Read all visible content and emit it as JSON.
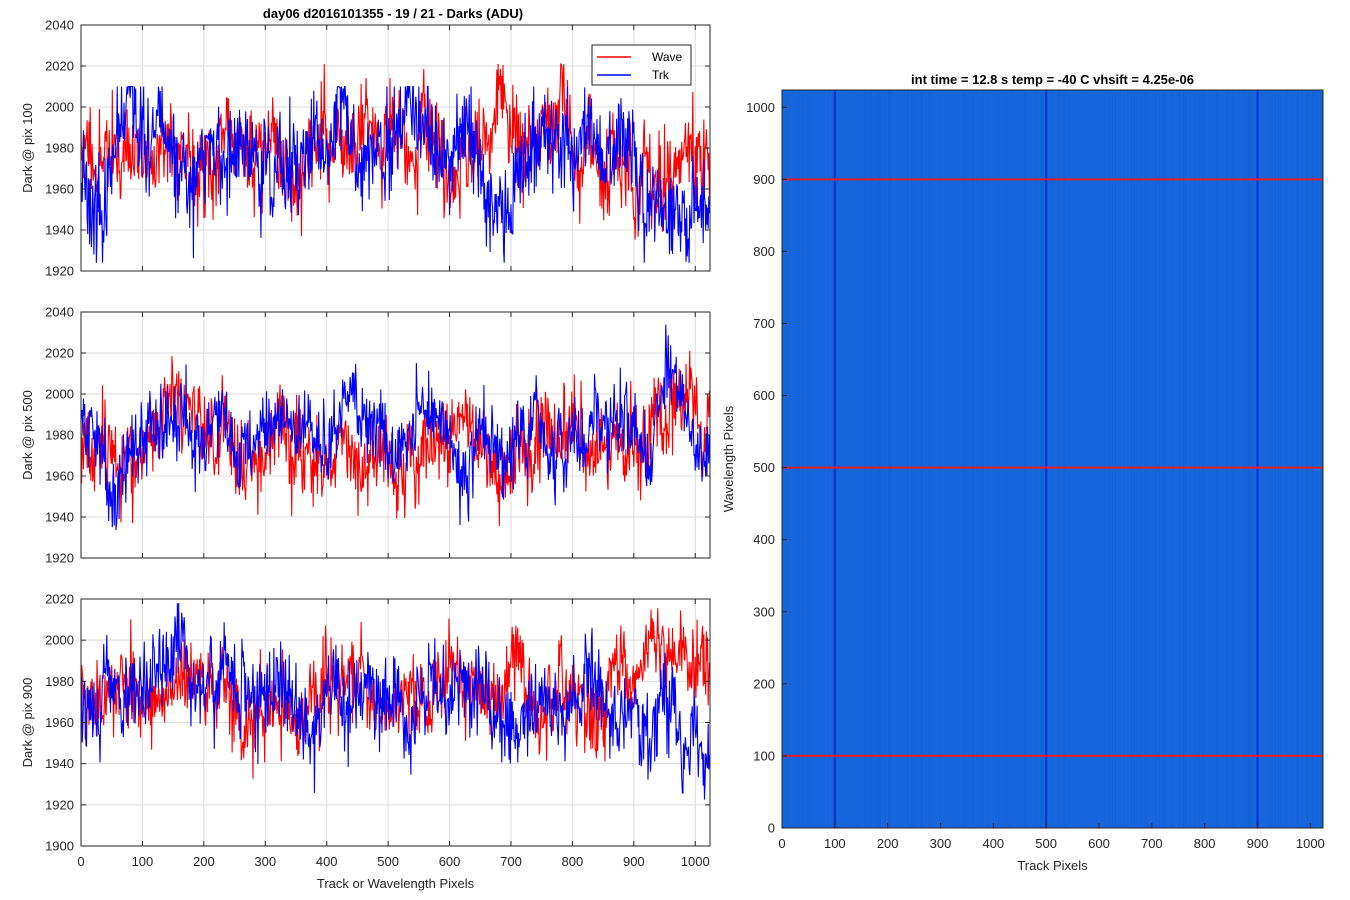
{
  "figure_title": "day06 d2016101355 - 19 / 21 - Darks (ADU)",
  "colors": {
    "wave": "#ff0000",
    "trk": "#0000ff",
    "image_bg": "#1565dc",
    "image_dark_line": "#0033cc",
    "image_red_line": "#ee1b1b",
    "grid": "#dcdcdc",
    "axis": "#262626"
  },
  "chart_data": [
    {
      "type": "line",
      "ylabel": "Dark @ pix 100",
      "xlabel": "",
      "xlim": [
        0,
        1024
      ],
      "ylim": [
        1920,
        2040
      ],
      "xticks": [
        0,
        100,
        200,
        300,
        400,
        500,
        600,
        700,
        800,
        900,
        1000
      ],
      "yticks": [
        1920,
        1940,
        1960,
        1980,
        2000,
        2020,
        2040
      ],
      "legend": {
        "position": "top-right",
        "entries": [
          "Wave",
          "Trk"
        ]
      },
      "series": [
        {
          "name": "Wave",
          "color": "#ff0000",
          "mean": 1978,
          "sd": 13,
          "min": 1926,
          "max": 2021,
          "seed": 11
        },
        {
          "name": "Trk",
          "color": "#0000ff",
          "mean": 1970,
          "sd": 14,
          "min": 1924,
          "max": 2010,
          "seed": 23
        }
      ]
    },
    {
      "type": "line",
      "ylabel": "Dark @ pix 500",
      "xlabel": "",
      "xlim": [
        0,
        1024
      ],
      "ylim": [
        1920,
        2040
      ],
      "xticks": [
        0,
        100,
        200,
        300,
        400,
        500,
        600,
        700,
        800,
        900,
        1000
      ],
      "yticks": [
        1920,
        1940,
        1960,
        1980,
        2000,
        2020,
        2040
      ],
      "series": [
        {
          "name": "Wave",
          "color": "#ff0000",
          "mean": 1976,
          "sd": 12,
          "min": 1923,
          "max": 2021,
          "seed": 37
        },
        {
          "name": "Trk",
          "color": "#0000ff",
          "mean": 1980,
          "sd": 11,
          "min": 1932,
          "max": 2035,
          "seed": 41
        }
      ]
    },
    {
      "type": "line",
      "ylabel": "Dark @ pix 900",
      "xlabel": "Track or Wavelength Pixels",
      "xlim": [
        0,
        1024
      ],
      "ylim": [
        1900,
        2020
      ],
      "xticks": [
        0,
        100,
        200,
        300,
        400,
        500,
        600,
        700,
        800,
        900,
        1000
      ],
      "yticks": [
        1900,
        1920,
        1940,
        1960,
        1980,
        2000,
        2020
      ],
      "series": [
        {
          "name": "Wave",
          "color": "#ff0000",
          "mean": 1978,
          "sd": 12,
          "min": 1918,
          "max": 2019,
          "seed": 53
        },
        {
          "name": "Trk",
          "color": "#0000ff",
          "mean": 1970,
          "sd": 12,
          "min": 1922,
          "max": 2018,
          "seed": 67
        }
      ]
    },
    {
      "type": "heatmap",
      "title": "int time = 12.8 s    temp = -40 C    vhsift = 4.25e-06",
      "xlabel": "Track Pixels",
      "ylabel": "Wavelength Pixels",
      "xlim": [
        0,
        1024
      ],
      "ylim": [
        0,
        1024
      ],
      "xticks": [
        0,
        100,
        200,
        300,
        400,
        500,
        600,
        700,
        800,
        900,
        1000
      ],
      "yticks": [
        0,
        100,
        200,
        300,
        400,
        500,
        600,
        700,
        800,
        900,
        1000
      ],
      "vertical_lines_x": [
        100,
        500,
        900
      ],
      "horizontal_lines_y": [
        100,
        500,
        900
      ]
    }
  ]
}
